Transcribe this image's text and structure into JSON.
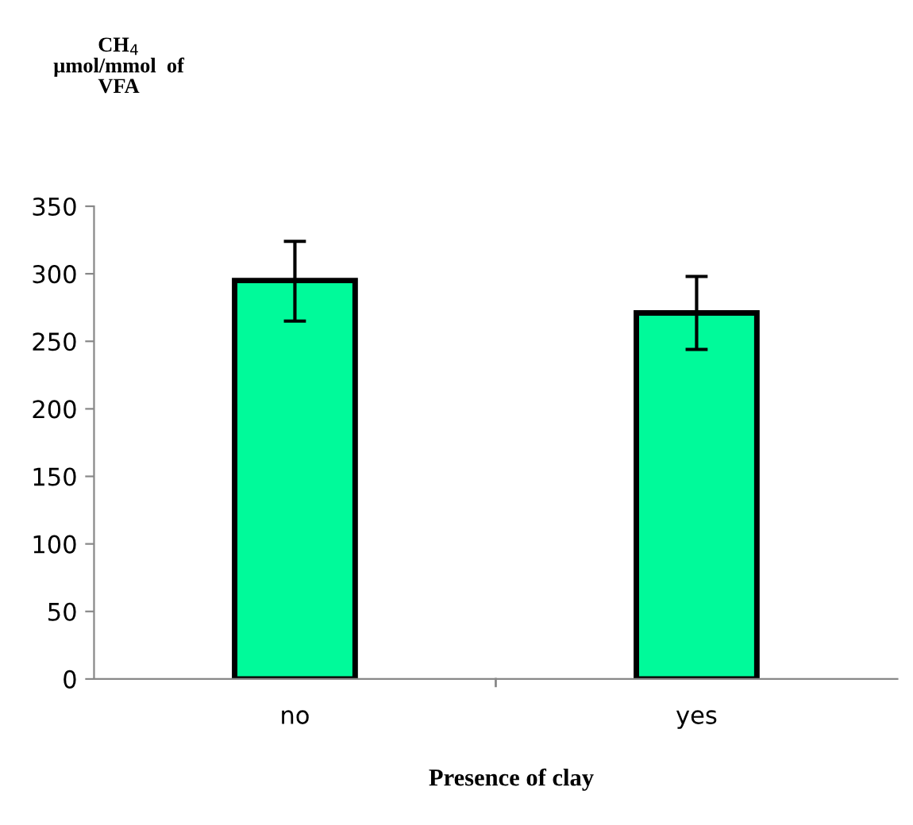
{
  "chart_data": {
    "type": "bar",
    "ylabel": "CH$_{4}$\nµmol/mmol  of\nVFA",
    "xlabel": "Presence of clay",
    "categories": [
      "no",
      "yes"
    ],
    "series": [
      {
        "color": "#00fa9a",
        "values": [
          295,
          271
        ],
        "errors": [
          [
            265,
            324
          ],
          [
            244,
            298
          ]
        ]
      }
    ],
    "ylim": [
      0,
      350
    ],
    "yticks": [
      0,
      50,
      100,
      150,
      200,
      250,
      300,
      350
    ],
    "grid": false,
    "legend": false
  }
}
